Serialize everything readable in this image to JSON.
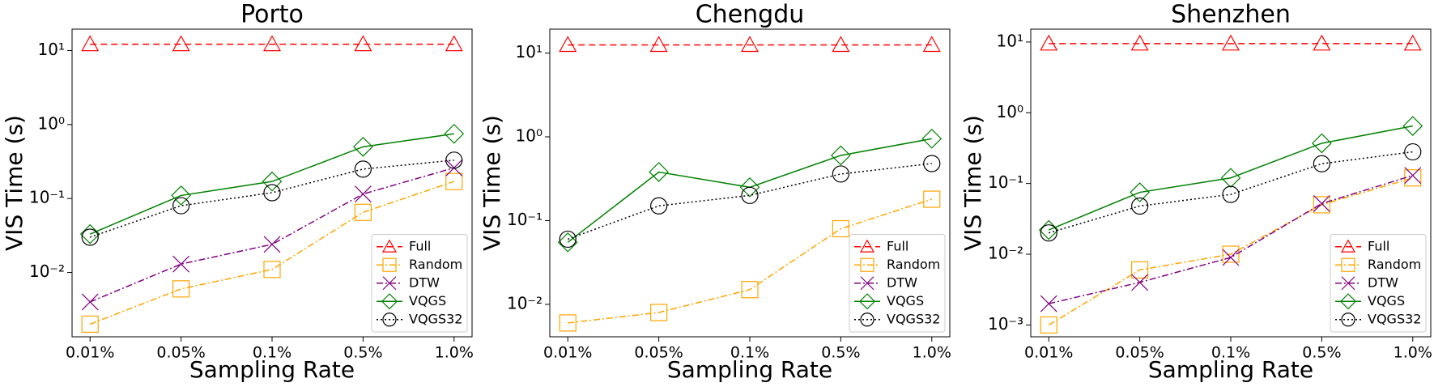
{
  "chart_data": [
    {
      "type": "line",
      "title": "Porto",
      "x_label": "Sampling Rate",
      "y_label": "VIS Time (s)",
      "log_y": true,
      "legend": "lower right",
      "categories": [
        "0.01%",
        "0.05%",
        "0.1%",
        "0.5%",
        "1.0%"
      ],
      "ylim": [
        0.00135,
        19.5
      ],
      "yticks": [
        {
          "value": 0.01,
          "label": "10⁻²"
        },
        {
          "value": 0.1,
          "label": "10⁻¹"
        },
        {
          "value": 1,
          "label": "10⁰"
        },
        {
          "value": 10,
          "label": "10¹"
        }
      ],
      "series": [
        {
          "name": "Full",
          "color": "#ff0000",
          "marker": "triangle",
          "linestyle": "dashed",
          "values": [
            12.2,
            12.2,
            12.2,
            12.2,
            12.2
          ]
        },
        {
          "name": "Random",
          "color": "#ffa500",
          "marker": "square",
          "linestyle": "dashdot",
          "values": [
            0.002,
            0.006,
            0.011,
            0.065,
            0.17
          ]
        },
        {
          "name": "DTW",
          "color": "#800080",
          "marker": "x",
          "linestyle": "dashdot",
          "values": [
            0.004,
            0.013,
            0.024,
            0.115,
            0.26
          ]
        },
        {
          "name": "VQGS",
          "color": "#008000",
          "marker": "diamond",
          "linestyle": "solid",
          "values": [
            0.033,
            0.11,
            0.17,
            0.5,
            0.75
          ]
        },
        {
          "name": "VQGS32",
          "color": "#000000",
          "marker": "circle",
          "linestyle": "dotted",
          "values": [
            0.03,
            0.08,
            0.12,
            0.25,
            0.33
          ]
        }
      ]
    },
    {
      "type": "line",
      "title": "Chengdu",
      "x_label": "Sampling Rate",
      "y_label": "VIS Time (s)",
      "log_y": true,
      "legend": "lower right",
      "categories": [
        "0.01%",
        "0.05%",
        "0.1%",
        "0.5%",
        "1.0%"
      ],
      "ylim": [
        0.0041,
        19.3
      ],
      "yticks": [
        {
          "value": 0.01,
          "label": "10⁻²"
        },
        {
          "value": 0.1,
          "label": "10⁻¹"
        },
        {
          "value": 1,
          "label": "10⁰"
        },
        {
          "value": 10,
          "label": "10¹"
        }
      ],
      "series": [
        {
          "name": "Full",
          "color": "#ff0000",
          "marker": "triangle",
          "linestyle": "dashed",
          "values": [
            12.5,
            12.5,
            12.5,
            12.5,
            12.5
          ]
        },
        {
          "name": "Random",
          "color": "#ffa500",
          "marker": "square",
          "linestyle": "dashdot",
          "values": [
            0.006,
            0.008,
            0.015,
            0.08,
            0.18
          ]
        },
        {
          "name": "DTW",
          "color": "#800080",
          "marker": "x",
          "linestyle": "dashdot",
          "values": [
            null,
            null,
            null,
            null,
            null
          ]
        },
        {
          "name": "VQGS",
          "color": "#008000",
          "marker": "diamond",
          "linestyle": "solid",
          "values": [
            0.055,
            0.38,
            0.25,
            0.6,
            0.95
          ]
        },
        {
          "name": "VQGS32",
          "color": "#000000",
          "marker": "circle",
          "linestyle": "dotted",
          "values": [
            0.06,
            0.15,
            0.2,
            0.36,
            0.48
          ]
        }
      ]
    },
    {
      "type": "line",
      "title": "Shenzhen",
      "x_label": "Sampling Rate",
      "y_label": "VIS Time (s)",
      "log_y": true,
      "legend": "lower right",
      "categories": [
        "0.01%",
        "0.05%",
        "0.1%",
        "0.5%",
        "1.0%"
      ],
      "ylim": [
        0.00068,
        15.2
      ],
      "yticks": [
        {
          "value": 0.001,
          "label": "10⁻³"
        },
        {
          "value": 0.01,
          "label": "10⁻²"
        },
        {
          "value": 0.1,
          "label": "10⁻¹"
        },
        {
          "value": 1,
          "label": "10⁰"
        },
        {
          "value": 10,
          "label": "10¹"
        }
      ],
      "series": [
        {
          "name": "Full",
          "color": "#ff0000",
          "marker": "triangle",
          "linestyle": "dashed",
          "values": [
            9.5,
            9.5,
            9.5,
            9.5,
            9.5
          ]
        },
        {
          "name": "Random",
          "color": "#ffa500",
          "marker": "square",
          "linestyle": "dashdot",
          "values": [
            0.001,
            0.006,
            0.01,
            0.05,
            0.12
          ]
        },
        {
          "name": "DTW",
          "color": "#800080",
          "marker": "x",
          "linestyle": "dashdot",
          "values": [
            0.002,
            0.004,
            0.009,
            0.052,
            0.13
          ]
        },
        {
          "name": "VQGS",
          "color": "#008000",
          "marker": "diamond",
          "linestyle": "solid",
          "values": [
            0.022,
            0.075,
            0.12,
            0.37,
            0.65
          ]
        },
        {
          "name": "VQGS32",
          "color": "#000000",
          "marker": "circle",
          "linestyle": "dotted",
          "values": [
            0.02,
            0.048,
            0.07,
            0.19,
            0.28
          ]
        }
      ]
    }
  ]
}
